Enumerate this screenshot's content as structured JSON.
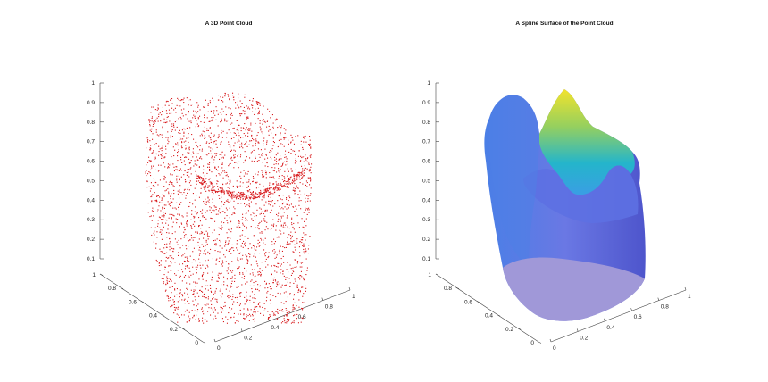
{
  "chart_data": [
    {
      "type": "scatter",
      "title": "A 3D Point Cloud",
      "xlabel": "",
      "ylabel": "",
      "zlabel": "",
      "xlim": [
        0,
        1
      ],
      "ylim": [
        0,
        1
      ],
      "zlim": [
        0,
        1
      ],
      "x_ticks": [
        "0",
        "0.2",
        "0.4",
        "0.6",
        "0.8",
        "1"
      ],
      "y_ticks": [
        "0",
        "0.2",
        "0.4",
        "0.6",
        "0.8",
        "1"
      ],
      "z_ticks": [
        "0.1",
        "0.2",
        "0.3",
        "0.4",
        "0.5",
        "0.6",
        "0.7",
        "0.8",
        "0.9",
        "1"
      ],
      "marker_color": "#d7191c",
      "point_count_estimate": 3000,
      "grid": false,
      "legend": "none"
    },
    {
      "type": "surface",
      "title": "A Spline Surface of the Point Cloud",
      "xlabel": "",
      "ylabel": "",
      "zlabel": "",
      "xlim": [
        0,
        1
      ],
      "ylim": [
        0,
        1
      ],
      "zlim": [
        0,
        1
      ],
      "x_ticks": [
        "0",
        "0.2",
        "0.4",
        "0.6",
        "0.8",
        "1"
      ],
      "y_ticks": [
        "0",
        "0.2",
        "0.4",
        "0.6",
        "0.8",
        "1"
      ],
      "z_ticks": [
        "0.1",
        "0.2",
        "0.3",
        "0.4",
        "0.5",
        "0.6",
        "0.7",
        "0.8",
        "0.9",
        "1"
      ],
      "colormap": "parula",
      "colormap_colors": [
        "#3e26a8",
        "#4760ef",
        "#2ca9ea",
        "#1fbfa8",
        "#85ce66",
        "#f5e52a"
      ],
      "base_color": "#a098d8",
      "grid": false,
      "legend": "none"
    }
  ]
}
